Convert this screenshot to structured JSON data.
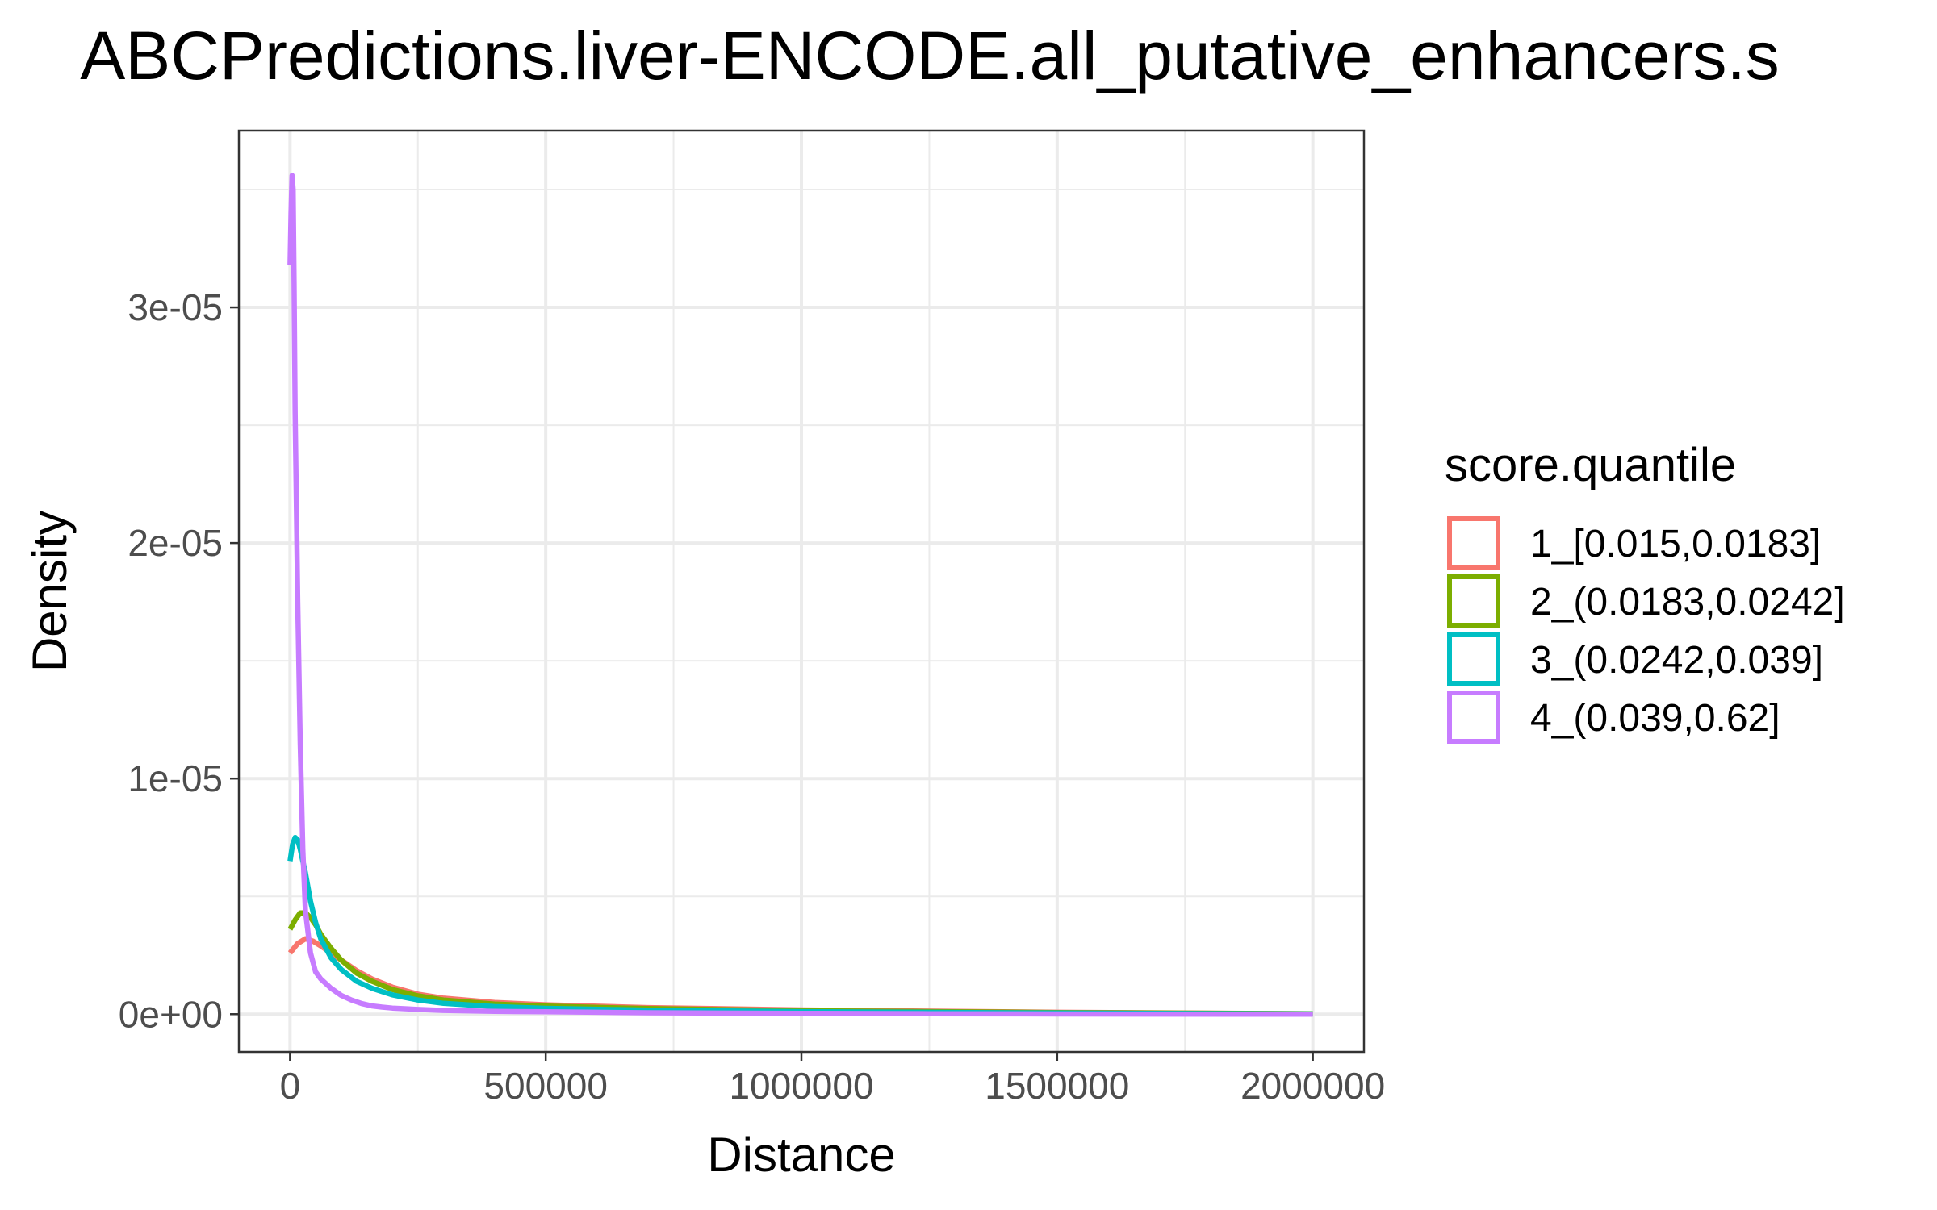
{
  "chart_data": {
    "type": "line",
    "title": "ABCPredictions.liver-ENCODE.all_putative_enhancers.s",
    "xlabel": "Distance",
    "ylabel": "Density",
    "xlim": [
      -100000,
      2100000
    ],
    "ylim": [
      -1.6e-06,
      3.75e-05
    ],
    "x_ticks": [
      0,
      500000,
      1000000,
      1500000,
      2000000
    ],
    "x_tick_labels": [
      "0",
      "500000",
      "1000000",
      "1500000",
      "2000000"
    ],
    "y_ticks": [
      0,
      1e-05,
      2e-05,
      3e-05
    ],
    "y_tick_labels": [
      "0e+00",
      "1e-05",
      "2e-05",
      "3e-05"
    ],
    "grid": true,
    "legend": {
      "title": "score.quantile",
      "position": "right"
    },
    "series": [
      {
        "name": "1_[0.015,0.0183]",
        "color": "#F8766D",
        "x": [
          0,
          15000,
          30000,
          45000,
          60000,
          80000,
          100000,
          130000,
          160000,
          200000,
          250000,
          300000,
          400000,
          500000,
          700000,
          1000000,
          1500000,
          2000000
        ],
        "y": [
          2.6e-06,
          3e-06,
          3.2e-06,
          3.1e-06,
          2.9e-06,
          2.6e-06,
          2.3e-06,
          1.85e-06,
          1.5e-06,
          1.15e-06,
          8.5e-07,
          6.8e-07,
          5e-07,
          4e-07,
          2.8e-07,
          1.8e-07,
          8e-08,
          2e-08
        ]
      },
      {
        "name": "2_(0.0183,0.0242]",
        "color": "#7CAE00",
        "x": [
          0,
          10000,
          20000,
          30000,
          40000,
          50000,
          60000,
          80000,
          100000,
          130000,
          160000,
          200000,
          250000,
          300000,
          400000,
          500000,
          700000,
          1000000,
          1500000,
          2000000
        ],
        "y": [
          3.6e-06,
          4e-06,
          4.3e-06,
          4.3e-06,
          4.1e-06,
          3.8e-06,
          3.4e-06,
          2.8e-06,
          2.3e-06,
          1.75e-06,
          1.4e-06,
          1.05e-06,
          7.8e-07,
          6e-07,
          4.3e-07,
          3.4e-07,
          2.4e-07,
          1.5e-07,
          7e-08,
          2e-08
        ]
      },
      {
        "name": "3_(0.0242,0.039]",
        "color": "#00BFC4",
        "x": [
          0,
          5000,
          10000,
          15000,
          20000,
          30000,
          40000,
          50000,
          60000,
          80000,
          100000,
          130000,
          160000,
          200000,
          250000,
          300000,
          400000,
          500000,
          700000,
          1000000,
          1500000,
          2000000
        ],
        "y": [
          6.5e-06,
          7.2e-06,
          7.5e-06,
          7.4e-06,
          7e-06,
          6e-06,
          4.8e-06,
          3.9e-06,
          3.2e-06,
          2.4e-06,
          1.9e-06,
          1.4e-06,
          1.1e-06,
          8.2e-07,
          6e-07,
          4.6e-07,
          3.2e-07,
          2.5e-07,
          1.7e-07,
          1.1e-07,
          5e-08,
          1e-08
        ]
      },
      {
        "name": "4_(0.039,0.62]",
        "color": "#C77CFF",
        "x": [
          0,
          2000,
          4000,
          6000,
          8000,
          10000,
          15000,
          20000,
          25000,
          30000,
          40000,
          50000,
          60000,
          80000,
          100000,
          120000,
          140000,
          160000,
          180000,
          200000,
          250000,
          300000,
          400000,
          500000,
          600000,
          700000,
          800000,
          1000000,
          1250000,
          1500000,
          2000000
        ],
        "y": [
          3.18e-05,
          3.4e-05,
          3.56e-05,
          3.5e-05,
          3.1e-05,
          2.55e-05,
          1.75e-05,
          1.15e-05,
          7e-06,
          4.4e-06,
          2.6e-06,
          1.8e-06,
          1.5e-06,
          1.1e-06,
          8e-07,
          6e-07,
          4.5e-07,
          3.5e-07,
          3e-07,
          2.6e-07,
          2e-07,
          1.6e-07,
          1.2e-07,
          1e-07,
          8e-08,
          6e-08,
          5e-08,
          3.5e-08,
          2e-08,
          1e-08,
          0
        ]
      }
    ]
  }
}
